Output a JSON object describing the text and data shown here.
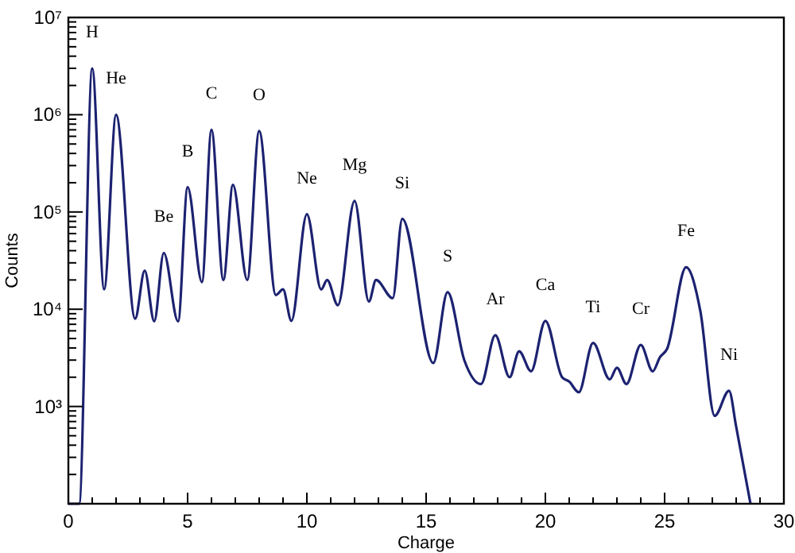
{
  "chart_data": {
    "type": "line",
    "xlabel": "Charge",
    "ylabel": "Counts",
    "log": "y",
    "grid": false,
    "marker": "none",
    "line_style": "solid",
    "x": [
      0,
      0.45,
      1.0,
      1.5,
      2.0,
      2.8,
      3.2,
      3.6,
      4.0,
      4.6,
      5.0,
      5.6,
      6.0,
      6.5,
      6.9,
      7.5,
      8.0,
      8.7,
      9.0,
      9.35,
      10.0,
      10.6,
      10.85,
      11.3,
      12.0,
      12.6,
      12.9,
      13.6,
      14.0,
      15.3,
      15.9,
      16.6,
      17.3,
      17.9,
      18.5,
      18.9,
      19.4,
      20.0,
      20.7,
      21.0,
      21.4,
      22.0,
      22.7,
      23.0,
      23.4,
      24.0,
      24.5,
      24.8,
      25.1,
      25.9,
      26.5,
      27.1,
      27.7,
      28.0,
      28.6
    ],
    "series": [
      {
        "color": "#1c2270",
        "values": [
          100,
          100,
          3000000,
          16000,
          1000000,
          8000,
          25000,
          7500,
          38000,
          7500,
          180000,
          19000,
          700000,
          20000,
          190000,
          20000,
          680000,
          14000,
          16000,
          7600,
          95000,
          16000,
          20000,
          11000,
          130000,
          12000,
          20000,
          13000,
          85000,
          2800,
          15000,
          3000,
          1700,
          5400,
          2000,
          3700,
          2300,
          7600,
          2000,
          1800,
          1400,
          4500,
          1900,
          2500,
          1700,
          4300,
          2300,
          3200,
          3900,
          27000,
          9500,
          800,
          1450,
          620,
          100
        ]
      }
    ],
    "xlim": [
      0,
      30
    ],
    "ylim": [
      100,
      10000000
    ],
    "xticks": [
      0,
      {
        "value": 1,
        "label": null
      },
      {
        "value": 2,
        "label": null
      },
      {
        "value": 3,
        "label": null
      },
      {
        "value": 4,
        "label": null
      },
      5,
      {
        "value": 6,
        "label": null
      },
      {
        "value": 7,
        "label": null
      },
      {
        "value": 8,
        "label": null
      },
      {
        "value": 9,
        "label": null
      },
      10,
      {
        "value": 11,
        "label": null
      },
      {
        "value": 12,
        "label": null
      },
      {
        "value": 13,
        "label": null
      },
      {
        "value": 14,
        "label": null
      },
      15,
      {
        "value": 16,
        "label": null
      },
      {
        "value": 17,
        "label": null
      },
      {
        "value": 18,
        "label": null
      },
      {
        "value": 19,
        "label": null
      },
      20,
      {
        "value": 21,
        "label": null
      },
      {
        "value": 22,
        "label": null
      },
      {
        "value": 23,
        "label": null
      },
      {
        "value": 24,
        "label": null
      },
      25,
      {
        "value": 26,
        "label": null
      },
      {
        "value": 27,
        "label": null
      },
      {
        "value": 28,
        "label": null
      },
      {
        "value": 29,
        "label": null
      },
      30
    ],
    "yticks": [
      {
        "value": 200,
        "label": null
      },
      {
        "value": 300,
        "label": null
      },
      {
        "value": 400,
        "label": null
      },
      {
        "value": 500,
        "label": null
      },
      {
        "value": 600,
        "label": null
      },
      {
        "value": 700,
        "label": null
      },
      {
        "value": 800,
        "label": null
      },
      {
        "value": 900,
        "label": null
      },
      {
        "value": 1000,
        "label": "10³"
      },
      {
        "value": 2000,
        "label": null
      },
      {
        "value": 3000,
        "label": null
      },
      {
        "value": 4000,
        "label": null
      },
      {
        "value": 5000,
        "label": null
      },
      {
        "value": 6000,
        "label": null
      },
      {
        "value": 7000,
        "label": null
      },
      {
        "value": 8000,
        "label": null
      },
      {
        "value": 9000,
        "label": null
      },
      {
        "value": 10000,
        "label": "10⁴"
      },
      {
        "value": 20000,
        "label": null
      },
      {
        "value": 30000,
        "label": null
      },
      {
        "value": 40000,
        "label": null
      },
      {
        "value": 50000,
        "label": null
      },
      {
        "value": 60000,
        "label": null
      },
      {
        "value": 70000,
        "label": null
      },
      {
        "value": 80000,
        "label": null
      },
      {
        "value": 90000,
        "label": null
      },
      {
        "value": 100000,
        "label": "10⁵"
      },
      {
        "value": 200000,
        "label": null
      },
      {
        "value": 300000,
        "label": null
      },
      {
        "value": 400000,
        "label": null
      },
      {
        "value": 500000,
        "label": null
      },
      {
        "value": 600000,
        "label": null
      },
      {
        "value": 700000,
        "label": null
      },
      {
        "value": 800000,
        "label": null
      },
      {
        "value": 900000,
        "label": null
      },
      {
        "value": 1000000,
        "label": "10⁶"
      },
      {
        "value": 2000000,
        "label": null
      },
      {
        "value": 3000000,
        "label": null
      },
      {
        "value": 4000000,
        "label": null
      },
      {
        "value": 5000000,
        "label": null
      },
      {
        "value": 6000000,
        "label": null
      },
      {
        "value": 7000000,
        "label": null
      },
      {
        "value": 8000000,
        "label": null
      },
      {
        "value": 9000000,
        "label": null
      },
      {
        "value": 10000000,
        "label": "10⁷"
      }
    ],
    "annotations": [
      {
        "text": "H",
        "x": 1.0,
        "y": 3000000
      },
      {
        "text": "He",
        "x": 2.0,
        "y": 1000000
      },
      {
        "text": "Be",
        "x": 4.0,
        "y": 38000
      },
      {
        "text": "B",
        "x": 5.0,
        "y": 180000
      },
      {
        "text": "C",
        "x": 6.0,
        "y": 700000
      },
      {
        "text": "O",
        "x": 8.0,
        "y": 680000
      },
      {
        "text": "Ne",
        "x": 10.0,
        "y": 95000
      },
      {
        "text": "Mg",
        "x": 12.0,
        "y": 130000
      },
      {
        "text": "Si",
        "x": 14.0,
        "y": 85000
      },
      {
        "text": "S",
        "x": 15.9,
        "y": 15000
      },
      {
        "text": "Ar",
        "x": 17.9,
        "y": 5400
      },
      {
        "text": "Ca",
        "x": 20.0,
        "y": 7600
      },
      {
        "text": "Ti",
        "x": 22.0,
        "y": 4500
      },
      {
        "text": "Cr",
        "x": 24.0,
        "y": 4300
      },
      {
        "text": "Fe",
        "x": 25.9,
        "y": 27000
      },
      {
        "text": "Ni",
        "x": 27.7,
        "y": 1450
      }
    ]
  }
}
